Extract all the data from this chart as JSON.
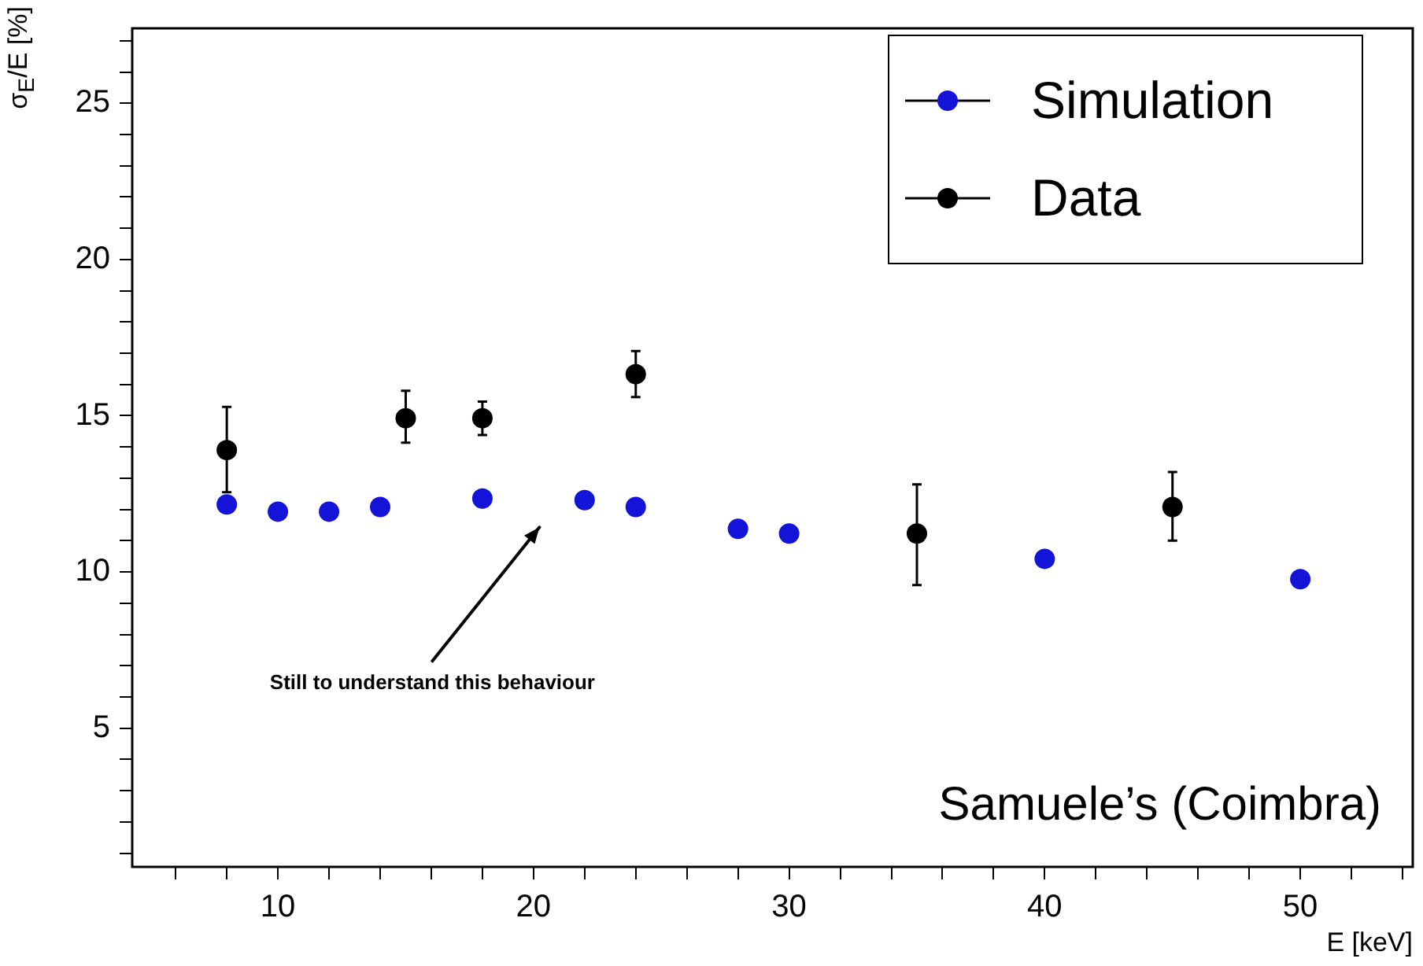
{
  "chart_data": {
    "type": "scatter",
    "xlabel": "E [keV]",
    "ylabel": "σ$_{E}$/E [%]",
    "xlim": [
      4.3,
      54.4
    ],
    "ylim": [
      0.56,
      27.4
    ],
    "xticks": [
      {
        "value": 6,
        "label": null
      },
      {
        "value": 8,
        "label": null
      },
      10,
      {
        "value": 12,
        "label": null
      },
      {
        "value": 14,
        "label": null
      },
      {
        "value": 16,
        "label": null
      },
      {
        "value": 18,
        "label": null
      },
      20,
      {
        "value": 22,
        "label": null
      },
      {
        "value": 24,
        "label": null
      },
      {
        "value": 26,
        "label": null
      },
      {
        "value": 28,
        "label": null
      },
      30,
      {
        "value": 32,
        "label": null
      },
      {
        "value": 34,
        "label": null
      },
      {
        "value": 36,
        "label": null
      },
      {
        "value": 38,
        "label": null
      },
      40,
      {
        "value": 42,
        "label": null
      },
      {
        "value": 44,
        "label": null
      },
      {
        "value": 46,
        "label": null
      },
      {
        "value": 48,
        "label": null
      },
      50,
      {
        "value": 52,
        "label": null
      },
      {
        "value": 54,
        "label": null
      }
    ],
    "yticks": [
      {
        "value": 1,
        "label": null
      },
      {
        "value": 2,
        "label": null
      },
      {
        "value": 3,
        "label": null
      },
      {
        "value": 4,
        "label": null
      },
      5,
      {
        "value": 6,
        "label": null
      },
      {
        "value": 7,
        "label": null
      },
      {
        "value": 8,
        "label": null
      },
      {
        "value": 9,
        "label": null
      },
      10,
      {
        "value": 11,
        "label": null
      },
      {
        "value": 12,
        "label": null
      },
      {
        "value": 13,
        "label": null
      },
      {
        "value": 14,
        "label": null
      },
      15,
      {
        "value": 16,
        "label": null
      },
      {
        "value": 17,
        "label": null
      },
      {
        "value": 18,
        "label": null
      },
      {
        "value": 19,
        "label": null
      },
      20,
      {
        "value": 21,
        "label": null
      },
      {
        "value": 22,
        "label": null
      },
      {
        "value": 23,
        "label": null
      },
      {
        "value": 24,
        "label": null
      },
      25,
      {
        "value": 26,
        "label": null
      },
      {
        "value": 27,
        "label": null
      }
    ],
    "grid": false,
    "legend": "top right",
    "marker": "circle",
    "series": [
      {
        "name": "Simulation",
        "color": "#1414d8",
        "x": [
          8,
          10,
          12,
          14,
          18,
          22,
          24,
          28,
          30,
          40,
          50
        ],
        "values": [
          12.16,
          11.93,
          11.93,
          12.08,
          12.35,
          12.3,
          12.08,
          11.38,
          11.23,
          10.42,
          9.77
        ]
      },
      {
        "name": "Data",
        "color": "#000000",
        "x": [
          8,
          15,
          18,
          24,
          35,
          45
        ],
        "values": [
          13.9,
          14.92,
          14.92,
          16.33,
          11.23,
          12.08
        ],
        "errors": [
          [
            12.55,
            15.28
          ],
          [
            14.14,
            15.8
          ],
          [
            14.38,
            15.45
          ],
          [
            15.6,
            17.07
          ],
          [
            9.58,
            12.8
          ],
          [
            11.0,
            13.2
          ]
        ]
      }
    ],
    "annotations": [
      "Still to understand this behaviour",
      "Samuele’s (Coimbra)"
    ]
  }
}
